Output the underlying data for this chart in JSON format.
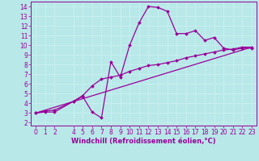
{
  "xlabel": "Windchill (Refroidissement éolien,°C)",
  "xlim": [
    -0.5,
    23.5
  ],
  "ylim": [
    1.7,
    14.5
  ],
  "xticks": [
    0,
    1,
    2,
    4,
    5,
    6,
    7,
    8,
    9,
    10,
    11,
    12,
    13,
    14,
    15,
    16,
    17,
    18,
    19,
    20,
    21,
    22,
    23
  ],
  "xtick_labels": [
    "0",
    "1",
    "2",
    "4",
    "5",
    "6",
    "7",
    "8",
    "9",
    "10",
    "11",
    "12",
    "13",
    "14",
    "15",
    "16",
    "17",
    "18",
    "19",
    "20",
    "21",
    "22",
    "23"
  ],
  "yticks": [
    2,
    3,
    4,
    5,
    6,
    7,
    8,
    9,
    10,
    11,
    12,
    13,
    14
  ],
  "bg_color": "#b8e8e8",
  "grid_color": "#c8f0f0",
  "line_color": "#990099",
  "line1_x": [
    0,
    1,
    2,
    4,
    5,
    6,
    7,
    8,
    9,
    10,
    11,
    12,
    13,
    14,
    15,
    16,
    17,
    18,
    19,
    20,
    21,
    22,
    23
  ],
  "line1_y": [
    3.0,
    3.1,
    3.1,
    4.2,
    4.7,
    3.1,
    2.5,
    8.3,
    6.7,
    10.0,
    12.3,
    14.0,
    13.9,
    13.5,
    11.2,
    11.2,
    11.5,
    10.5,
    10.8,
    9.7,
    9.5,
    9.7,
    9.7
  ],
  "line2_x": [
    0,
    1,
    2,
    4,
    5,
    6,
    7,
    8,
    9,
    10,
    11,
    12,
    13,
    14,
    15,
    16,
    17,
    18,
    19,
    20,
    21,
    22,
    23
  ],
  "line2_y": [
    3.0,
    3.2,
    3.3,
    4.2,
    4.8,
    5.8,
    6.5,
    6.7,
    6.9,
    7.3,
    7.6,
    7.9,
    8.0,
    8.2,
    8.4,
    8.7,
    8.9,
    9.1,
    9.3,
    9.5,
    9.6,
    9.8,
    9.8
  ],
  "line3_x": [
    0,
    23
  ],
  "line3_y": [
    3.0,
    9.8
  ],
  "marker": "D",
  "marker_size": 2.0,
  "line_width": 0.9,
  "tick_fontsize": 5.5,
  "xlabel_fontsize": 6.0
}
